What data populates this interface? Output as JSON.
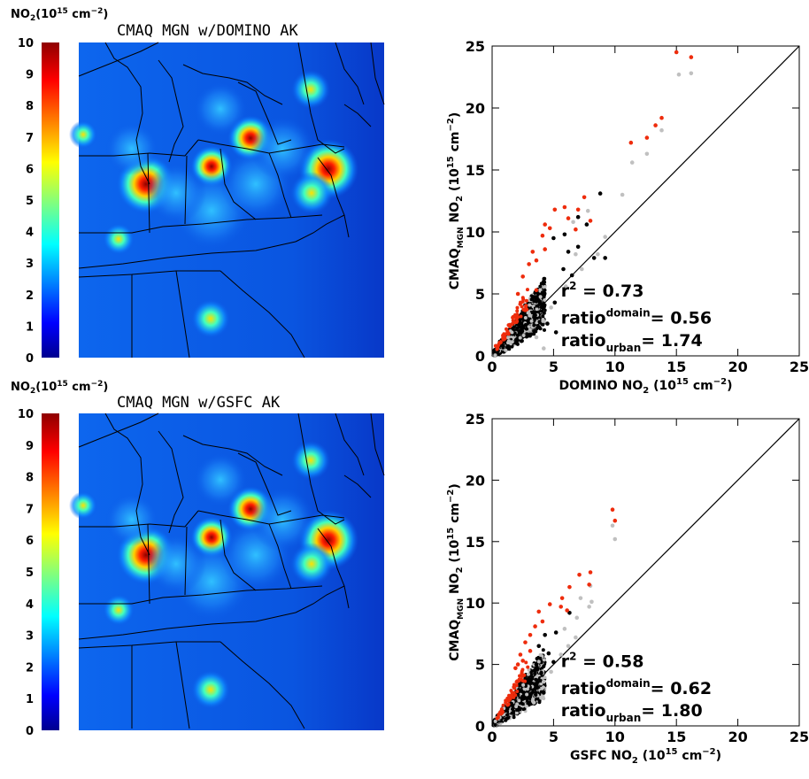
{
  "colors": {
    "low": "#00008f",
    "mid": "#00ffff",
    "high": "#8f0000",
    "map_background": "#0a5ae8",
    "boundaries": "#000000",
    "points_gray": "#c0c0c0",
    "points_black": "#000000",
    "points_red": "#ee2c0c",
    "one_to_one": "#000000"
  },
  "maps": [
    {
      "title": "CMAQ MGN w/DOMINO AK",
      "colorbar_label": "NO2(10^15 cm^-2)",
      "colorbar_ticks": [
        "0",
        "1",
        "2",
        "3",
        "4",
        "5",
        "6",
        "7",
        "8",
        "9",
        "10"
      ],
      "hotspots_hint": "urban NO2 plumes"
    },
    {
      "title": "CMAQ MGN w/GSFC AK",
      "colorbar_label": "NO2(10^15 cm^-2)",
      "colorbar_ticks": [
        "0",
        "1",
        "2",
        "3",
        "4",
        "5",
        "6",
        "7",
        "8",
        "9",
        "10"
      ],
      "hotspots_hint": "urban NO2 plumes"
    }
  ],
  "chart_data": [
    {
      "type": "scatter",
      "xlabel": "DOMINO NO2 (10^15 cm^-2)",
      "ylabel": "CMAQ MGN NO2 (10^15 cm^-2)",
      "xlim": [
        0,
        25
      ],
      "ylim": [
        0,
        25
      ],
      "xticks": [
        "0",
        "5",
        "10",
        "15",
        "20",
        "25"
      ],
      "yticks": [
        "0",
        "5",
        "10",
        "15",
        "20",
        "25"
      ],
      "r2": "0.73",
      "ratio_domain": "0.56",
      "ratio_urban": "1.74",
      "labels": {
        "r2": "r",
        "ratio": "ratio",
        "domain": "domain",
        "urban": "urban"
      },
      "series": [
        {
          "color": "gray",
          "points": [
            [
              15.2,
              22.7
            ],
            [
              16.2,
              22.8
            ],
            [
              13.8,
              18.2
            ],
            [
              12.6,
              16.3
            ],
            [
              11.4,
              15.6
            ],
            [
              10.6,
              13.0
            ],
            [
              7.8,
              11.7
            ],
            [
              6.6,
              10.8
            ],
            [
              6.8,
              8.2
            ],
            [
              8.6,
              8.2
            ],
            [
              9.2,
              9.6
            ],
            [
              7.3,
              7.0
            ],
            [
              6.0,
              5.6
            ],
            [
              4.8,
              3.9
            ],
            [
              3.6,
              1.5
            ],
            [
              4.2,
              0.6
            ]
          ]
        },
        {
          "color": "black",
          "points": [
            [
              8.8,
              13.1
            ],
            [
              7.0,
              11.2
            ],
            [
              5.9,
              9.8
            ],
            [
              5.0,
              9.5
            ],
            [
              6.2,
              8.4
            ],
            [
              7.0,
              8.8
            ],
            [
              7.7,
              10.6
            ],
            [
              8.3,
              7.9
            ],
            [
              9.2,
              7.9
            ],
            [
              5.8,
              7.0
            ],
            [
              6.5,
              6.5
            ],
            [
              4.2,
              6.0
            ],
            [
              3.6,
              4.7
            ],
            [
              5.1,
              4.3
            ],
            [
              3.3,
              3.5
            ],
            [
              4.5,
              2.6
            ],
            [
              5.2,
              1.9
            ]
          ]
        },
        {
          "color": "red",
          "points": [
            [
              15.0,
              24.5
            ],
            [
              16.2,
              24.1
            ],
            [
              13.8,
              19.2
            ],
            [
              13.3,
              18.6
            ],
            [
              12.6,
              17.6
            ],
            [
              11.3,
              17.2
            ],
            [
              7.5,
              12.8
            ],
            [
              5.9,
              12.0
            ],
            [
              6.2,
              11.1
            ],
            [
              5.1,
              11.8
            ],
            [
              4.7,
              10.3
            ],
            [
              4.3,
              10.6
            ],
            [
              7.0,
              11.8
            ],
            [
              8.0,
              10.9
            ],
            [
              6.8,
              10.2
            ],
            [
              4.1,
              9.7
            ],
            [
              4.3,
              8.6
            ],
            [
              3.3,
              8.4
            ],
            [
              3.6,
              7.7
            ],
            [
              3.0,
              7.4
            ],
            [
              2.5,
              6.4
            ],
            [
              2.1,
              5.0
            ],
            [
              3.6,
              5.3
            ],
            [
              0.3,
              0.8
            ],
            [
              0.9,
              1.6
            ]
          ]
        }
      ]
    },
    {
      "type": "scatter",
      "xlabel": "GSFC NO2 (10^15 cm^-2)",
      "ylabel": "CMAQ MGN NO2 (10^15 cm^-2)",
      "xlim": [
        0,
        25
      ],
      "ylim": [
        0,
        25
      ],
      "xticks": [
        "0",
        "5",
        "10",
        "15",
        "20",
        "25"
      ],
      "yticks": [
        "0",
        "5",
        "10",
        "15",
        "20",
        "25"
      ],
      "r2": "0.58",
      "ratio_domain": "0.62",
      "ratio_urban": "1.80",
      "labels": {
        "r2": "r",
        "ratio": "ratio",
        "domain": "domain",
        "urban": "urban"
      },
      "series": [
        {
          "color": "gray",
          "points": [
            [
              9.8,
              16.3
            ],
            [
              10.0,
              15.2
            ],
            [
              8.0,
              11.4
            ],
            [
              7.2,
              10.4
            ],
            [
              8.1,
              10.1
            ],
            [
              7.9,
              9.7
            ],
            [
              6.9,
              8.8
            ],
            [
              5.9,
              7.9
            ],
            [
              6.8,
              7.2
            ],
            [
              6.2,
              6.5
            ],
            [
              5.6,
              5.8
            ],
            [
              4.8,
              4.4
            ],
            [
              4.2,
              3.6
            ],
            [
              3.4,
              1.9
            ]
          ]
        },
        {
          "color": "black",
          "points": [
            [
              6.3,
              9.2
            ],
            [
              5.2,
              7.6
            ],
            [
              4.3,
              7.4
            ],
            [
              3.8,
              6.5
            ],
            [
              4.6,
              5.9
            ],
            [
              5.0,
              5.2
            ],
            [
              3.6,
              5.0
            ],
            [
              4.0,
              4.3
            ],
            [
              3.1,
              3.6
            ],
            [
              4.2,
              2.7
            ]
          ]
        },
        {
          "color": "red",
          "points": [
            [
              9.8,
              17.6
            ],
            [
              10.0,
              16.7
            ],
            [
              8.0,
              12.5
            ],
            [
              7.1,
              12.3
            ],
            [
              7.9,
              11.5
            ],
            [
              6.3,
              11.3
            ],
            [
              5.7,
              10.4
            ],
            [
              5.6,
              9.7
            ],
            [
              6.1,
              9.4
            ],
            [
              3.8,
              9.3
            ],
            [
              4.1,
              8.5
            ],
            [
              4.7,
              9.9
            ],
            [
              3.5,
              8.1
            ],
            [
              3.1,
              7.4
            ],
            [
              2.7,
              6.8
            ],
            [
              3.1,
              6.1
            ],
            [
              2.5,
              5.3
            ],
            [
              1.9,
              4.7
            ],
            [
              2.3,
              5.8
            ],
            [
              2.1,
              5.0
            ]
          ]
        }
      ]
    }
  ]
}
